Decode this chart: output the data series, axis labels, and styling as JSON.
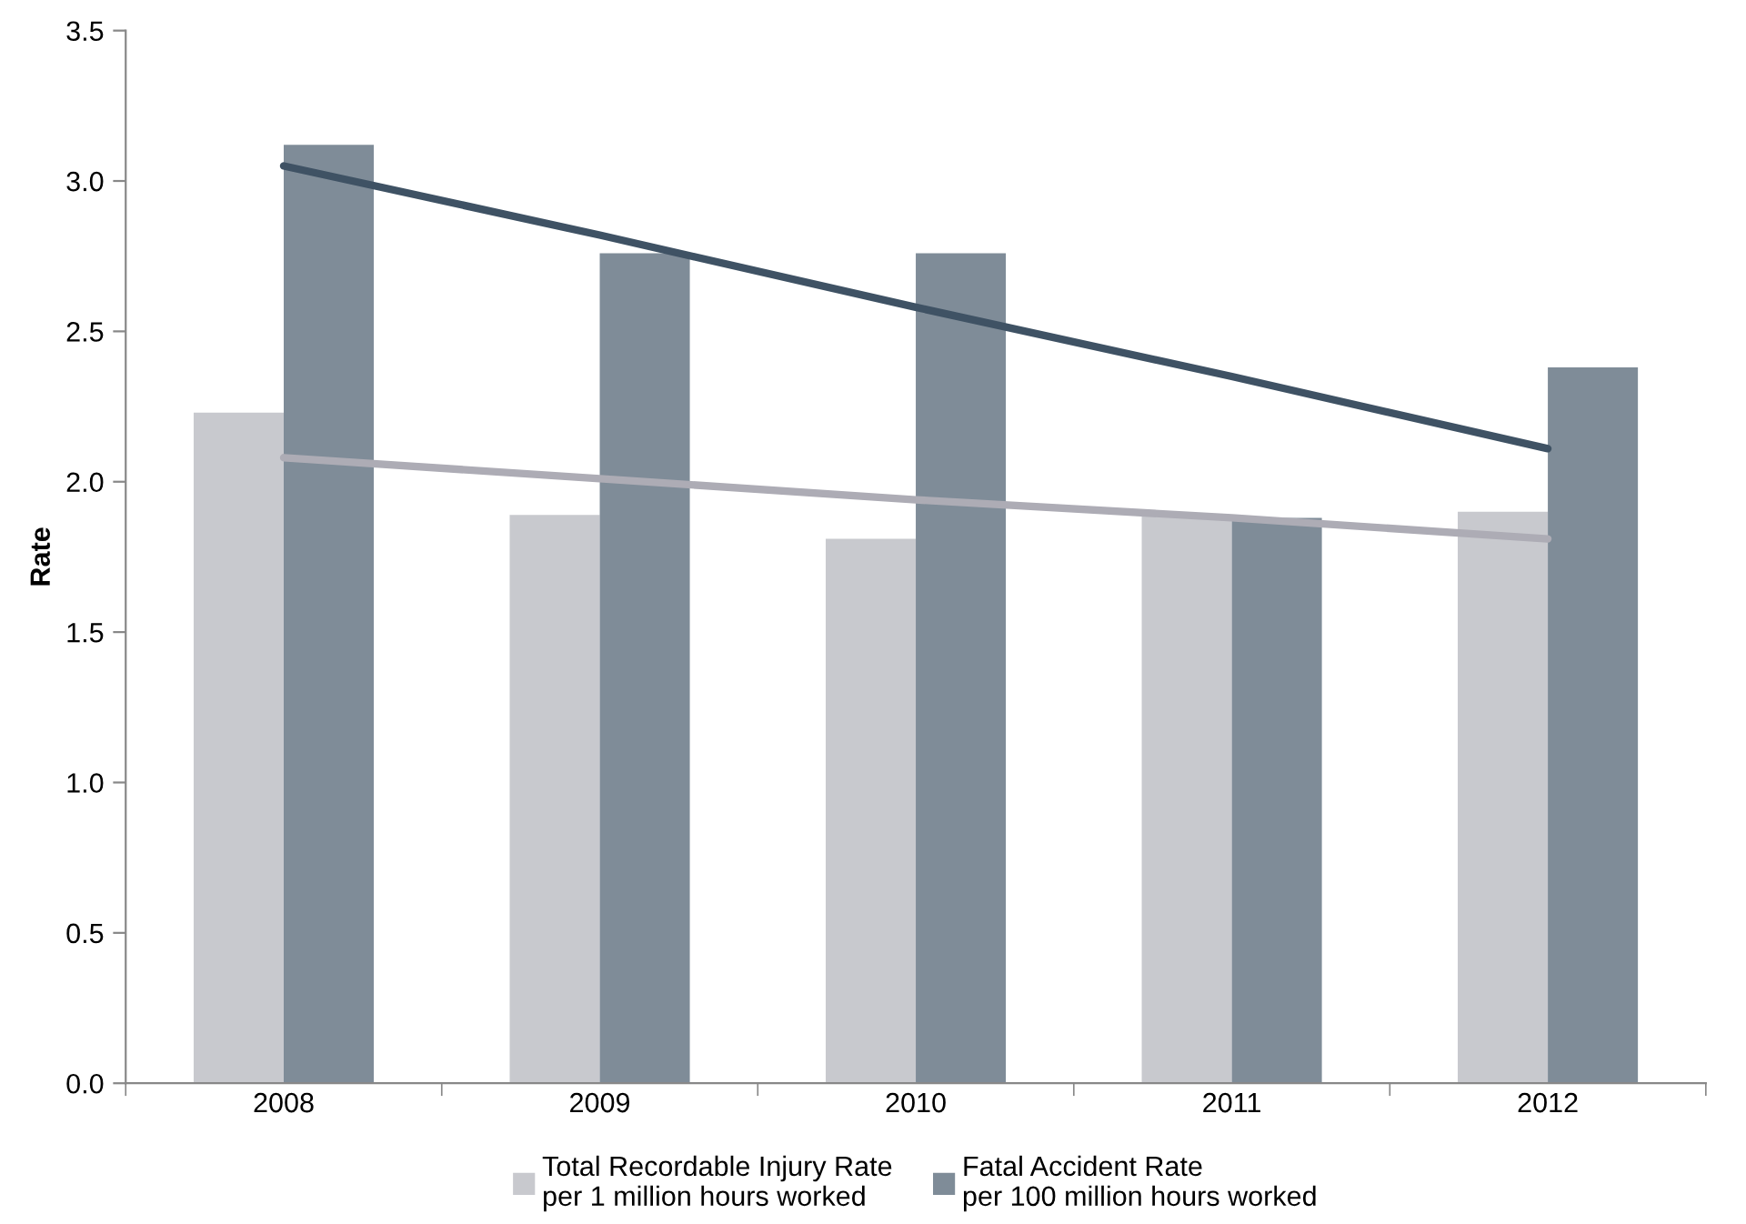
{
  "chart_data": {
    "type": "bar",
    "ylabel": "Rate",
    "categories": [
      "2008",
      "2009",
      "2010",
      "2011",
      "2012"
    ],
    "series": [
      {
        "name": "Total Recordable Injury Rate\nper 1 million hours worked",
        "color": "#c8c9ce",
        "values": [
          2.23,
          1.89,
          1.81,
          1.89,
          1.9
        ]
      },
      {
        "name": "Fatal Accident Rate\nper 100 million hours worked",
        "color": "#7f8c98",
        "values": [
          3.12,
          2.76,
          2.76,
          1.88,
          2.38
        ]
      },
      {
        "type": "line",
        "color": "#adacb5",
        "values": [
          2.08,
          2.01,
          1.94,
          1.88,
          1.81
        ]
      },
      {
        "type": "line",
        "color": "#3f5264",
        "values": [
          3.05,
          2.82,
          2.58,
          2.35,
          2.11
        ]
      }
    ],
    "ylim": [
      0,
      3.5
    ],
    "yticks": [
      {
        "value": 0,
        "label": "0.0"
      },
      {
        "value": 0.5,
        "label": "0.5"
      },
      {
        "value": 1,
        "label": "1.0"
      },
      {
        "value": 1.5,
        "label": "1.5"
      },
      {
        "value": 2,
        "label": "2.0"
      },
      {
        "value": 2.5,
        "label": "2.5"
      },
      {
        "value": 3,
        "label": "3.0"
      },
      {
        "value": 3.5,
        "label": "3.5"
      }
    ],
    "legend": "bottom"
  }
}
